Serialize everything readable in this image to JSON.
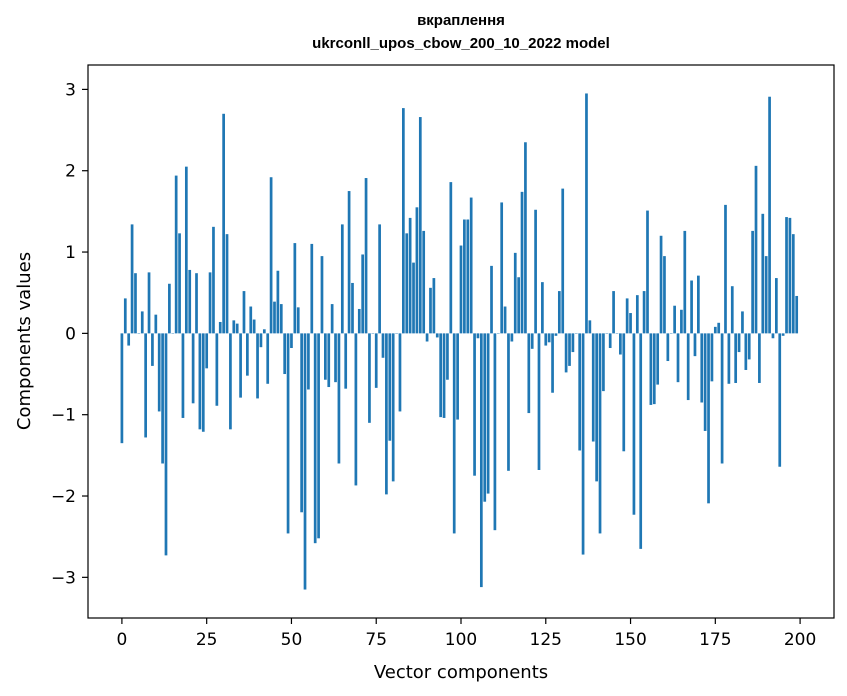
{
  "chart_data": {
    "type": "bar",
    "title_line1": "вкраплення",
    "title_line2": "ukrconll_upos_cbow_200_10_2022 model",
    "xlabel": "Vector components",
    "ylabel": "Components values",
    "xlim": [
      -10,
      210
    ],
    "ylim": [
      -3.5,
      3.3
    ],
    "xticks": [
      0,
      25,
      50,
      75,
      100,
      125,
      150,
      175,
      200
    ],
    "yticks": [
      -3,
      -2,
      -1,
      0,
      1,
      2,
      3
    ],
    "ytick_labels": [
      "−3",
      "−2",
      "−1",
      "0",
      "1",
      "2",
      "3"
    ],
    "bar_color": "#1f77b4",
    "values": [
      -1.35,
      0.43,
      -0.15,
      1.34,
      0.74,
      0.0,
      0.27,
      -1.28,
      0.75,
      -0.4,
      0.23,
      -0.96,
      -1.6,
      -2.73,
      0.61,
      0.0,
      1.94,
      1.23,
      -1.04,
      2.05,
      0.78,
      -0.86,
      0.74,
      -1.18,
      -1.21,
      -0.43,
      0.75,
      1.31,
      -0.89,
      0.14,
      2.7,
      1.22,
      -1.18,
      0.16,
      0.12,
      -0.79,
      0.52,
      -0.52,
      0.33,
      0.17,
      -0.8,
      -0.17,
      0.05,
      -0.62,
      1.92,
      0.39,
      0.77,
      0.36,
      -0.5,
      -2.46,
      -0.18,
      1.11,
      0.32,
      -2.2,
      -3.15,
      -0.69,
      1.1,
      -2.58,
      -2.52,
      0.95,
      -0.57,
      -0.66,
      0.36,
      -0.6,
      -1.6,
      1.34,
      -0.68,
      1.75,
      0.62,
      -1.87,
      0.3,
      0.97,
      1.91,
      -1.1,
      0.0,
      -0.67,
      1.34,
      -0.3,
      -1.98,
      -1.32,
      -1.82,
      0.0,
      -0.96,
      2.77,
      1.23,
      1.42,
      0.87,
      1.55,
      2.66,
      1.26,
      -0.1,
      0.56,
      0.68,
      -0.05,
      -1.03,
      -1.04,
      -0.57,
      1.86,
      -2.46,
      -1.06,
      1.08,
      1.4,
      1.4,
      1.67,
      -1.75,
      -0.06,
      -3.12,
      -2.07,
      -1.97,
      0.83,
      -2.42,
      0.0,
      1.61,
      0.33,
      -1.69,
      -0.1,
      0.99,
      0.69,
      1.74,
      2.35,
      -0.98,
      -0.19,
      1.52,
      -1.68,
      0.63,
      -0.15,
      -0.11,
      -0.73,
      -0.03,
      0.52,
      1.78,
      -0.48,
      -0.4,
      -0.23,
      0.0,
      -1.44,
      -2.72,
      2.95,
      0.16,
      -1.33,
      -1.82,
      -2.46,
      -0.71,
      0.0,
      -0.18,
      0.52,
      0.0,
      -0.26,
      -1.45,
      0.43,
      0.25,
      -2.23,
      0.47,
      -2.65,
      0.52,
      1.51,
      -0.88,
      -0.87,
      -0.63,
      1.2,
      0.95,
      -0.34,
      0.0,
      0.34,
      -0.6,
      0.29,
      1.26,
      -0.82,
      0.65,
      -0.28,
      0.71,
      -0.85,
      -1.2,
      -2.09,
      -0.59,
      0.08,
      0.13,
      -1.6,
      1.58,
      -0.62,
      0.58,
      -0.61,
      -0.23,
      0.27,
      -0.45,
      -0.32,
      1.26,
      2.06,
      -0.61,
      1.47,
      0.95,
      2.91,
      -0.06,
      0.68,
      -1.64,
      -0.03,
      1.43,
      1.42,
      1.22,
      0.46
    ]
  }
}
